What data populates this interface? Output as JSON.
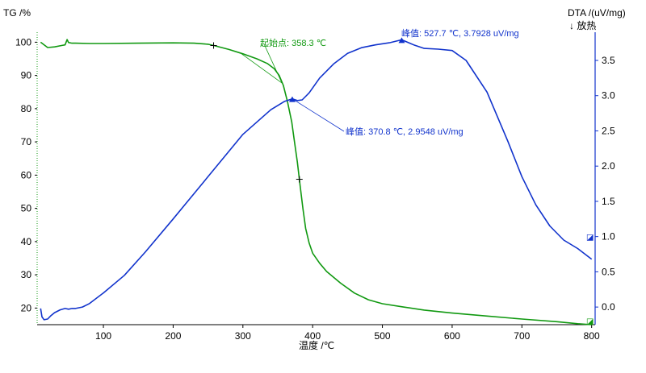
{
  "chart_data": {
    "type": "line",
    "left_axis": {
      "label": "TG /%",
      "ticks": [
        20,
        30,
        40,
        50,
        60,
        70,
        80,
        90,
        100
      ],
      "range": [
        15,
        103
      ]
    },
    "right_axis": {
      "label": "DTA /(uV/mg)",
      "sublabel": "↓ 放热",
      "ticks": [
        "0.0",
        "0.5",
        "1.0",
        "1.5",
        "2.0",
        "2.5",
        "3.0",
        "3.5"
      ],
      "range": [
        -0.25,
        3.9
      ]
    },
    "x_axis": {
      "label": "温度 /℃",
      "ticks": [
        100,
        200,
        300,
        400,
        500,
        600,
        700,
        800
      ],
      "range": [
        5,
        805
      ]
    },
    "series": [
      {
        "key": "TG",
        "axis": "left",
        "color": "#119911",
        "x": [
          10,
          20,
          30,
          40,
          45,
          48,
          50,
          55,
          60,
          80,
          100,
          150,
          200,
          230,
          250,
          260,
          280,
          300,
          320,
          335,
          345,
          352,
          358,
          364,
          370,
          374,
          378,
          382,
          386,
          390,
          395,
          400,
          410,
          420,
          440,
          460,
          480,
          500,
          530,
          560,
          600,
          650,
          700,
          750,
          780,
          800
        ],
        "y": [
          100.0,
          98.4,
          98.6,
          99.0,
          99.2,
          100.8,
          99.9,
          99.7,
          99.7,
          99.6,
          99.6,
          99.7,
          99.8,
          99.7,
          99.4,
          98.9,
          97.8,
          96.5,
          95.0,
          93.6,
          92.0,
          90.0,
          87.0,
          82.0,
          76.0,
          70.0,
          64.0,
          57.0,
          50.0,
          44.0,
          39.5,
          36.5,
          33.5,
          31.0,
          27.5,
          24.5,
          22.5,
          21.3,
          20.3,
          19.4,
          18.5,
          17.6,
          16.7,
          15.9,
          15.3,
          15.0
        ]
      },
      {
        "key": "DTA",
        "axis": "right",
        "color": "#1133cc",
        "x": [
          10,
          12,
          15,
          20,
          25,
          30,
          38,
          45,
          50,
          55,
          60,
          70,
          80,
          100,
          130,
          160,
          200,
          250,
          300,
          340,
          360,
          370.8,
          378,
          385,
          395,
          410,
          430,
          450,
          470,
          490,
          510,
          527.7,
          545,
          560,
          580,
          600,
          620,
          650,
          680,
          700,
          720,
          740,
          760,
          780,
          800
        ],
        "y": [
          -0.02,
          -0.14,
          -0.18,
          -0.17,
          -0.12,
          -0.08,
          -0.04,
          -0.02,
          -0.03,
          -0.02,
          -0.02,
          0.0,
          0.05,
          0.2,
          0.45,
          0.78,
          1.25,
          1.85,
          2.45,
          2.8,
          2.92,
          2.9548,
          2.93,
          2.94,
          3.04,
          3.25,
          3.45,
          3.6,
          3.68,
          3.72,
          3.75,
          3.7928,
          3.72,
          3.67,
          3.66,
          3.64,
          3.5,
          3.05,
          2.35,
          1.85,
          1.45,
          1.15,
          0.95,
          0.83,
          0.68
        ]
      }
    ],
    "annotations": {
      "onset": {
        "label": "起始点: 358.3 ℃",
        "x": 358.3
      },
      "peak1": {
        "label": "峰值: 370.8 ℃, 2.9548 uV/mg",
        "x": 370.8,
        "y": 2.9548
      },
      "peak2": {
        "label": "峰值: 527.7 ℃, 3.7928 uV/mg",
        "x": 527.7,
        "y": 3.7928
      }
    },
    "end_markers": {
      "tg_symbol": "◪",
      "dta_symbol": "◪"
    },
    "grid": false
  }
}
